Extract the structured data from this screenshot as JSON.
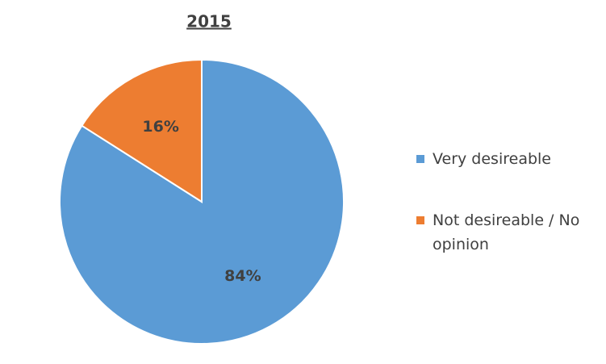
{
  "chart_data": {
    "type": "pie",
    "title": "2015",
    "categories": [
      "Very desireable",
      "Not desireable / No opinion"
    ],
    "values": [
      84,
      16
    ],
    "value_labels": [
      "84%",
      "16%"
    ],
    "colors": [
      "#5b9bd5",
      "#ed7d31"
    ]
  }
}
